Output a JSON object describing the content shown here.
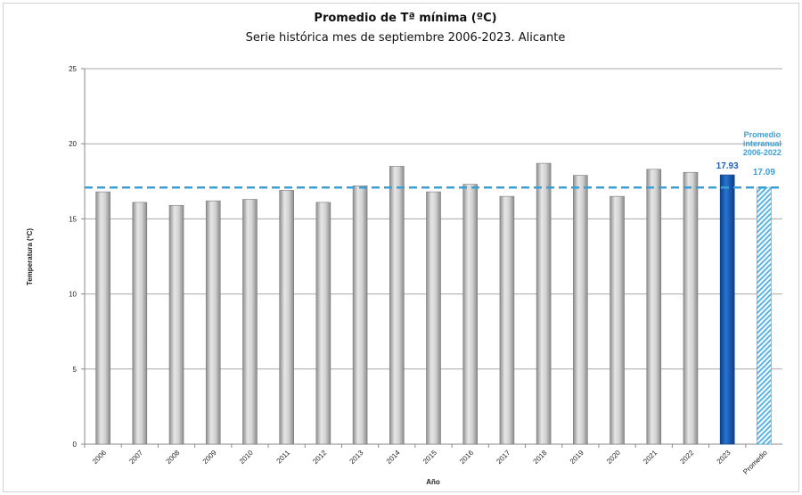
{
  "chart_data": {
    "type": "bar",
    "title": "Promedio de Tª mínima (ºC)",
    "subtitle": "Serie histórica mes de septiembre 2006-2023. Alicante",
    "xlabel": "Año",
    "ylabel": "Temperatura (ºC)",
    "ylim": [
      0,
      25
    ],
    "yticks": [
      0,
      5,
      10,
      15,
      20,
      25
    ],
    "grid": true,
    "categories": [
      "2006",
      "2007",
      "2008",
      "2009",
      "2010",
      "2011",
      "2012",
      "2013",
      "2014",
      "2015",
      "2016",
      "2017",
      "2018",
      "2019",
      "2020",
      "2021",
      "2022",
      "2023",
      "Promedio"
    ],
    "values": [
      16.8,
      16.1,
      15.9,
      16.2,
      16.3,
      16.9,
      16.1,
      17.2,
      18.5,
      16.8,
      17.3,
      16.5,
      18.7,
      17.9,
      16.5,
      18.3,
      18.1,
      17.93,
      17.09
    ],
    "highlight": {
      "category": "2023",
      "value_label": "17.93",
      "color": "#1a5fb4"
    },
    "average_bar": {
      "category": "Promedio",
      "value_label": "17.09",
      "color": "#5ab4e5"
    },
    "reference_line": {
      "value": 17.09,
      "label": [
        "Promedio",
        "interanual",
        "2006-2022"
      ],
      "color": "#3aa0d8",
      "style": "dashed"
    },
    "bar_color": "#b8b8b8"
  }
}
